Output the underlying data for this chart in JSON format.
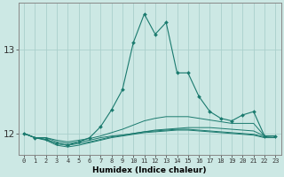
{
  "xlabel": "Humidex (Indice chaleur)",
  "bg_color": "#cce8e4",
  "grid_color": "#aacfcb",
  "line_color": "#1a7a6e",
  "x_values": [
    0,
    1,
    2,
    3,
    4,
    5,
    6,
    7,
    8,
    9,
    10,
    11,
    12,
    13,
    14,
    15,
    16,
    17,
    18,
    19,
    20,
    21,
    22,
    23
  ],
  "flat_series": [
    [
      12.0,
      11.95,
      11.95,
      11.9,
      11.88,
      11.9,
      11.92,
      11.95,
      11.97,
      11.98,
      12.0,
      12.02,
      12.04,
      12.05,
      12.06,
      12.07,
      12.07,
      12.07,
      12.06,
      12.05,
      12.04,
      12.03,
      11.97,
      11.97
    ],
    [
      12.0,
      11.95,
      11.93,
      11.88,
      11.86,
      11.88,
      11.9,
      11.93,
      11.96,
      11.98,
      12.0,
      12.02,
      12.03,
      12.04,
      12.05,
      12.05,
      12.04,
      12.03,
      12.02,
      12.01,
      12.0,
      11.99,
      11.96,
      11.95
    ],
    [
      12.0,
      11.95,
      11.92,
      11.86,
      11.84,
      11.86,
      11.89,
      11.92,
      11.95,
      11.97,
      11.99,
      12.01,
      12.02,
      12.03,
      12.04,
      12.04,
      12.03,
      12.02,
      12.01,
      12.0,
      11.99,
      11.98,
      11.95,
      11.95
    ],
    [
      12.0,
      11.95,
      11.95,
      11.92,
      11.9,
      11.92,
      11.94,
      11.97,
      12.01,
      12.05,
      12.1,
      12.15,
      12.18,
      12.2,
      12.2,
      12.2,
      12.18,
      12.16,
      12.14,
      12.12,
      12.12,
      12.12,
      11.97,
      11.97
    ]
  ],
  "main_series": [
    12.0,
    11.95,
    11.93,
    11.88,
    11.86,
    11.9,
    11.95,
    12.08,
    12.28,
    12.52,
    13.08,
    13.42,
    13.18,
    13.32,
    12.72,
    12.72,
    12.44,
    12.26,
    12.18,
    12.15,
    12.22,
    12.26,
    11.97,
    11.97
  ],
  "ylim": [
    11.75,
    13.55
  ],
  "yticks": [
    12,
    13
  ],
  "xlim": [
    -0.5,
    23.5
  ]
}
